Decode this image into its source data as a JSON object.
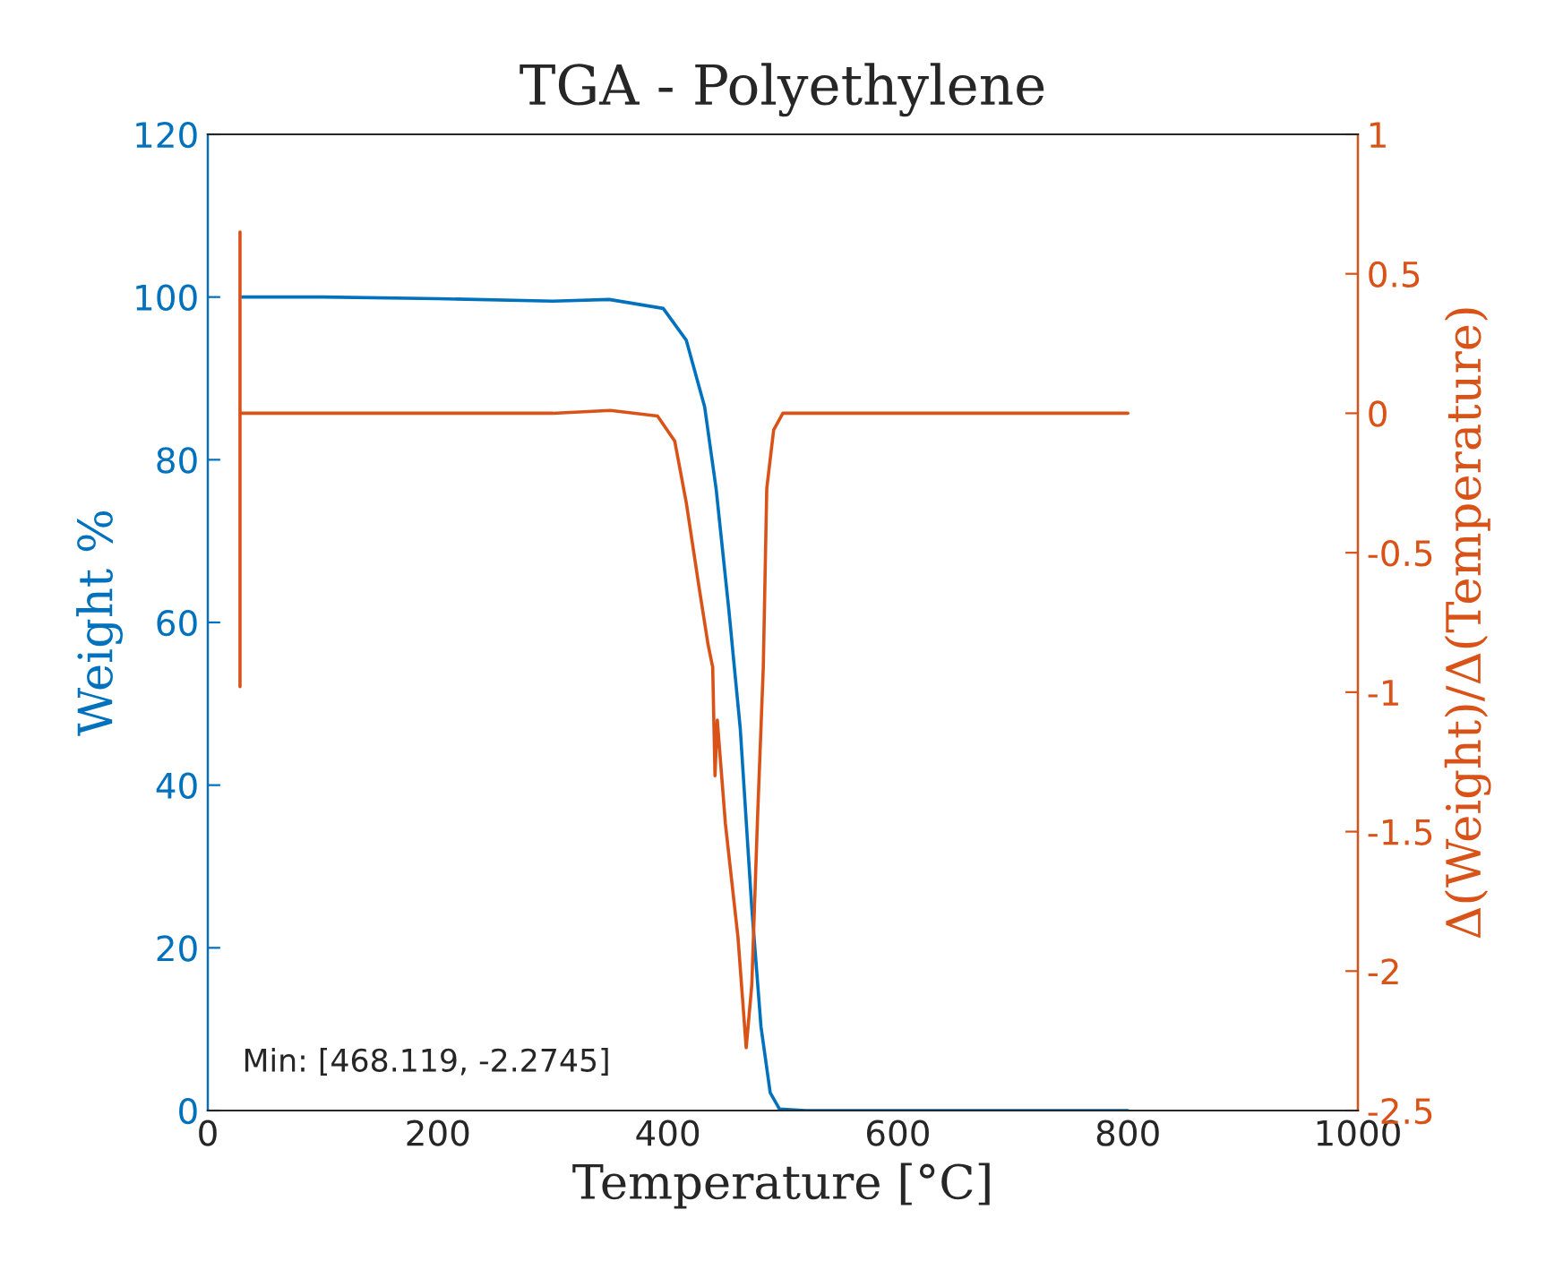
{
  "chart_data": {
    "type": "line",
    "title": "TGA - Polyethylene",
    "xlabel": "Temperature [°C]",
    "ylabel": "Weight %",
    "y2label": "Δ(Weight)/Δ(Temperature)",
    "series": [
      {
        "color": "#0072bd",
        "x": [
          30,
          100,
          200,
          300,
          349,
          396,
          416,
          432,
          442,
          453,
          463,
          473,
          481,
          489,
          497,
          520,
          600,
          700,
          800
        ],
        "values": [
          100,
          100,
          99.8,
          99.5,
          99.7,
          98.6,
          94.7,
          86.5,
          76.4,
          61.6,
          46.9,
          24.9,
          10.3,
          2.2,
          0.2,
          0,
          0,
          0,
          0
        ]
      },
      {
        "color": "#d95319",
        "axis": "y2",
        "x": [
          28,
          28,
          28,
          28,
          100,
          200,
          300,
          350,
          391,
          406,
          416,
          427,
          435,
          439,
          441,
          443,
          450,
          461,
          468.119,
          473,
          478,
          483,
          486,
          492,
          500,
          600,
          700,
          800
        ],
        "values": [
          0,
          0.65,
          -0.98,
          0,
          0,
          0,
          0,
          0.01,
          -0.01,
          -0.1,
          -0.32,
          -0.62,
          -0.83,
          -0.91,
          -1.3,
          -1.1,
          -1.47,
          -1.88,
          -2.2745,
          -2.05,
          -1.45,
          -0.91,
          -0.27,
          -0.06,
          0,
          0,
          0,
          0
        ]
      }
    ],
    "xlim": [
      0,
      1000
    ],
    "xticks": [
      0,
      200,
      400,
      600,
      800,
      1000
    ],
    "ylim": [
      0,
      120
    ],
    "yticks": [
      0,
      20,
      40,
      60,
      80,
      100,
      120
    ],
    "y2lim": [
      -2.5,
      1
    ],
    "y2ticks": [
      -2.5,
      -2,
      -1.5,
      -1,
      -0.5,
      0,
      0.5,
      1
    ],
    "annotations": [
      "Min: [468.119, -2.2745]"
    ],
    "grid": false,
    "legend": false
  }
}
